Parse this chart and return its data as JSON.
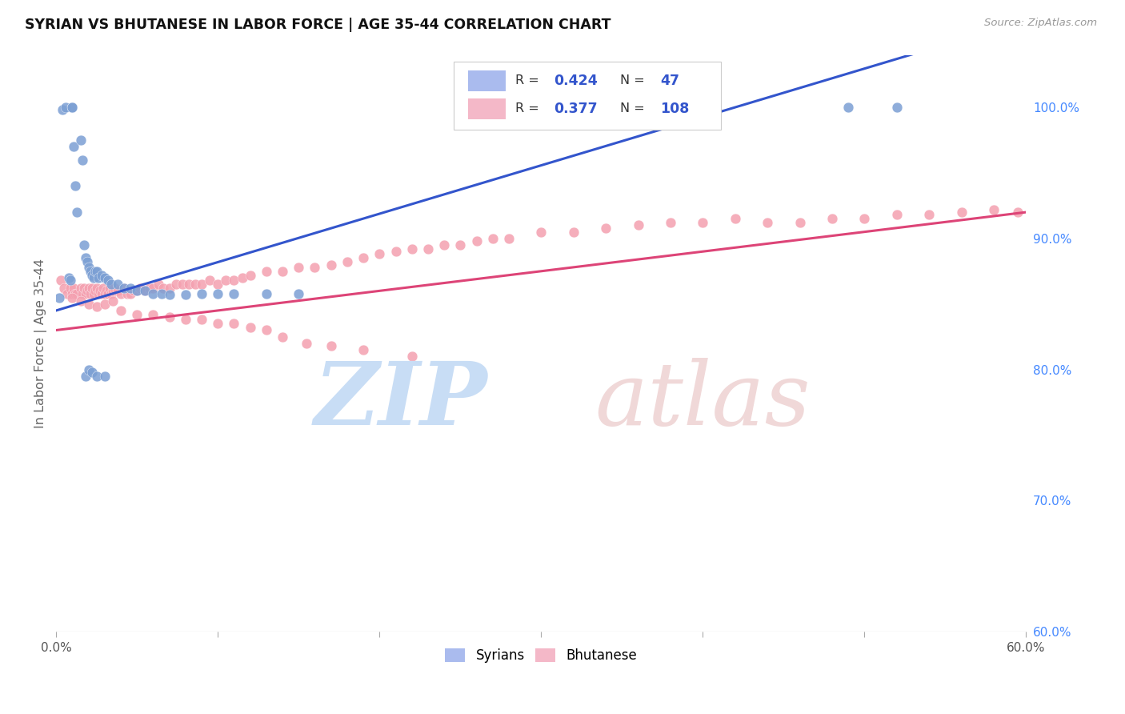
{
  "title": "SYRIAN VS BHUTANESE IN LABOR FORCE | AGE 35-44 CORRELATION CHART",
  "source": "Source: ZipAtlas.com",
  "ylabel": "In Labor Force | Age 35-44",
  "xlim": [
    0.0,
    0.6
  ],
  "ylim": [
    0.6,
    1.04
  ],
  "y_ticks_right": [
    0.6,
    0.7,
    0.8,
    0.9,
    1.0
  ],
  "y_tick_labels_right": [
    "60.0%",
    "70.0%",
    "80.0%",
    "90.0%",
    "100.0%"
  ],
  "syrian_color": "#7b9fd4",
  "bhutanese_color": "#f4a0b0",
  "trend_blue": "#3355cc",
  "trend_pink": "#dd4477",
  "legend_box_blue": "#aabbee",
  "legend_box_pink": "#f4b8c8",
  "syrian_seed": 101,
  "bhutanese_seed": 202,
  "syrian_N": 47,
  "bhutanese_N": 108,
  "syrian_R": 0.424,
  "bhutanese_R": 0.377,
  "syrian_x": [
    0.002,
    0.004,
    0.006,
    0.008,
    0.009,
    0.01,
    0.01,
    0.011,
    0.012,
    0.013,
    0.015,
    0.016,
    0.017,
    0.018,
    0.019,
    0.02,
    0.021,
    0.022,
    0.023,
    0.024,
    0.025,
    0.026,
    0.028,
    0.03,
    0.032,
    0.034,
    0.038,
    0.042,
    0.046,
    0.05,
    0.055,
    0.06,
    0.065,
    0.07,
    0.08,
    0.09,
    0.1,
    0.11,
    0.13,
    0.15,
    0.018,
    0.02,
    0.022,
    0.025,
    0.03,
    0.49,
    0.52
  ],
  "syrian_y": [
    0.855,
    0.998,
    1.0,
    0.87,
    0.868,
    1.0,
    1.0,
    0.97,
    0.94,
    0.92,
    0.975,
    0.96,
    0.895,
    0.885,
    0.882,
    0.878,
    0.875,
    0.872,
    0.87,
    0.875,
    0.875,
    0.87,
    0.872,
    0.87,
    0.868,
    0.865,
    0.865,
    0.862,
    0.862,
    0.86,
    0.86,
    0.858,
    0.858,
    0.857,
    0.857,
    0.858,
    0.858,
    0.858,
    0.858,
    0.858,
    0.795,
    0.8,
    0.798,
    0.795,
    0.795,
    1.0,
    1.0
  ],
  "bhutanese_x": [
    0.003,
    0.005,
    0.007,
    0.009,
    0.01,
    0.011,
    0.012,
    0.013,
    0.015,
    0.016,
    0.017,
    0.018,
    0.019,
    0.02,
    0.021,
    0.022,
    0.023,
    0.024,
    0.025,
    0.026,
    0.027,
    0.028,
    0.029,
    0.03,
    0.031,
    0.032,
    0.033,
    0.034,
    0.035,
    0.036,
    0.038,
    0.04,
    0.042,
    0.044,
    0.046,
    0.048,
    0.05,
    0.052,
    0.055,
    0.058,
    0.06,
    0.063,
    0.066,
    0.07,
    0.074,
    0.078,
    0.082,
    0.086,
    0.09,
    0.095,
    0.1,
    0.105,
    0.11,
    0.115,
    0.12,
    0.13,
    0.14,
    0.15,
    0.16,
    0.17,
    0.18,
    0.19,
    0.2,
    0.21,
    0.22,
    0.23,
    0.24,
    0.25,
    0.26,
    0.27,
    0.28,
    0.3,
    0.32,
    0.34,
    0.36,
    0.38,
    0.4,
    0.42,
    0.44,
    0.46,
    0.48,
    0.5,
    0.52,
    0.54,
    0.56,
    0.58,
    0.595,
    0.01,
    0.015,
    0.02,
    0.025,
    0.03,
    0.035,
    0.04,
    0.05,
    0.06,
    0.07,
    0.08,
    0.09,
    0.1,
    0.11,
    0.12,
    0.13,
    0.14,
    0.155,
    0.17,
    0.19,
    0.22
  ],
  "bhutanese_y": [
    0.868,
    0.862,
    0.858,
    0.862,
    0.858,
    0.862,
    0.858,
    0.858,
    0.862,
    0.858,
    0.862,
    0.858,
    0.86,
    0.862,
    0.858,
    0.862,
    0.858,
    0.86,
    0.862,
    0.858,
    0.86,
    0.858,
    0.862,
    0.858,
    0.86,
    0.858,
    0.862,
    0.858,
    0.86,
    0.862,
    0.86,
    0.858,
    0.862,
    0.858,
    0.858,
    0.86,
    0.86,
    0.862,
    0.86,
    0.862,
    0.862,
    0.865,
    0.862,
    0.862,
    0.865,
    0.865,
    0.865,
    0.865,
    0.865,
    0.868,
    0.865,
    0.868,
    0.868,
    0.87,
    0.872,
    0.875,
    0.875,
    0.878,
    0.878,
    0.88,
    0.882,
    0.885,
    0.888,
    0.89,
    0.892,
    0.892,
    0.895,
    0.895,
    0.898,
    0.9,
    0.9,
    0.905,
    0.905,
    0.908,
    0.91,
    0.912,
    0.912,
    0.915,
    0.912,
    0.912,
    0.915,
    0.915,
    0.918,
    0.918,
    0.92,
    0.922,
    0.92,
    0.855,
    0.852,
    0.85,
    0.848,
    0.85,
    0.852,
    0.845,
    0.842,
    0.842,
    0.84,
    0.838,
    0.838,
    0.835,
    0.835,
    0.832,
    0.83,
    0.825,
    0.82,
    0.818,
    0.815,
    0.81
  ],
  "watermark_zip_color": "#c8ddf5",
  "watermark_atlas_color": "#f0d8d8"
}
